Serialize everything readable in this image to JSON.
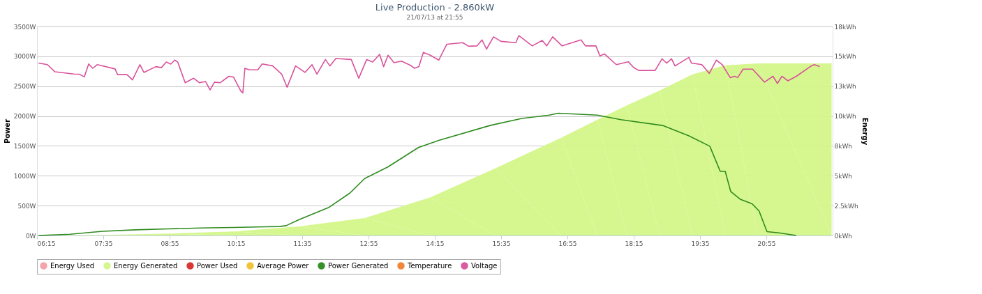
{
  "chart_data": {
    "type": "line",
    "title": "Live Production - 2.860kW",
    "subtitle": "21/07/13 at 21:55",
    "ylabel": "Power",
    "y2label": "Energy",
    "xlim": [
      6.25,
      22.25
    ],
    "xticks": [
      {
        "value": 6.25,
        "label": "06:15"
      },
      {
        "value": 7.5833,
        "label": "07:35"
      },
      {
        "value": 8.9167,
        "label": "08:55"
      },
      {
        "value": 10.25,
        "label": "10:15"
      },
      {
        "value": 11.5833,
        "label": "11:35"
      },
      {
        "value": 12.9167,
        "label": "12:55"
      },
      {
        "value": 14.25,
        "label": "14:15"
      },
      {
        "value": 15.5833,
        "label": "15:35"
      },
      {
        "value": 16.9167,
        "label": "16:55"
      },
      {
        "value": 18.25,
        "label": "18:15"
      },
      {
        "value": 19.5833,
        "label": "19:35"
      },
      {
        "value": 20.9167,
        "label": "20:55"
      }
    ],
    "ylim": [
      0,
      3500
    ],
    "yticks": [
      {
        "value": 0,
        "label": "0W"
      },
      {
        "value": 500,
        "label": "500W"
      },
      {
        "value": 1000,
        "label": "1000W"
      },
      {
        "value": 1500,
        "label": "1500W"
      },
      {
        "value": 2000,
        "label": "2000W"
      },
      {
        "value": 2500,
        "label": "2500W"
      },
      {
        "value": 3000,
        "label": "3000W"
      },
      {
        "value": 3500,
        "label": "3500W"
      }
    ],
    "y2lim": [
      0,
      17.5
    ],
    "y2ticks": [
      {
        "value": 0,
        "label": "0kWh"
      },
      {
        "value": 2.5,
        "label": "2.5kWh"
      },
      {
        "value": 5,
        "label": "5kWh"
      },
      {
        "value": 7.5,
        "label": "8kWh"
      },
      {
        "value": 10,
        "label": "10kWh"
      },
      {
        "value": 12.5,
        "label": "13kWh"
      },
      {
        "value": 15,
        "label": "15kWh"
      },
      {
        "value": 17.5,
        "label": "18kWh"
      }
    ],
    "grid": "y",
    "legend": "bottom",
    "marker": "none",
    "line_style": "solid",
    "series": [
      {
        "name": "Energy Used",
        "type": "area",
        "axis": "y2",
        "color": "#f4a0a8"
      },
      {
        "name": "Energy Generated",
        "type": "area",
        "axis": "y2",
        "color": "#d4f78a",
        "x": [
          6.25,
          7.57,
          8.89,
          10.2,
          11.52,
          12.84,
          14.16,
          15.47,
          16.79,
          17.52,
          18.11,
          18.77,
          19.43,
          20.09,
          20.74,
          22.23
        ],
        "values": [
          0,
          0.05,
          0.16,
          0.33,
          0.76,
          1.46,
          3.2,
          5.63,
          8.18,
          9.7,
          10.89,
          12.14,
          13.49,
          14.25,
          14.41,
          14.41
        ]
      },
      {
        "name": "Power Used",
        "color": "#d62d2d"
      },
      {
        "name": "Average Power",
        "color": "#f0c030"
      },
      {
        "name": "Power Generated",
        "color": "#2e8b1e",
        "x": [
          6.28,
          6.91,
          7.57,
          8.23,
          8.89,
          9.54,
          10.2,
          10.86,
          11.13,
          11.26,
          11.52,
          12.11,
          12.54,
          12.84,
          13.31,
          13.92,
          14.33,
          15.36,
          16.0,
          16.55,
          16.73,
          17.52,
          17.99,
          18.83,
          19.36,
          19.78,
          19.99,
          20.09,
          20.2,
          20.39,
          20.63,
          20.77,
          20.93,
          21.17,
          21.52
        ],
        "values": [
          0,
          20,
          70,
          95,
          110,
          125,
          135,
          145,
          150,
          165,
          265,
          466,
          709,
          954,
          1149,
          1473,
          1593,
          1842,
          1960,
          2015,
          2048,
          2015,
          1940,
          1842,
          1669,
          1495,
          1073,
          1073,
          737,
          607,
          531,
          412,
          65,
          43,
          0
        ]
      },
      {
        "name": "Temperature",
        "color": "#f08030"
      },
      {
        "name": "Voltage",
        "color": "#d9519a",
        "x": [
          6.28,
          6.46,
          6.61,
          6.99,
          7.11,
          7.2,
          7.29,
          7.37,
          7.46,
          7.82,
          7.87,
          8.06,
          8.17,
          8.32,
          8.4,
          8.64,
          8.75,
          8.85,
          8.94,
          9.02,
          9.08,
          9.23,
          9.4,
          9.52,
          9.64,
          9.73,
          9.82,
          9.93,
          10.11,
          10.2,
          10.35,
          10.39,
          10.43,
          10.52,
          10.69,
          10.78,
          10.99,
          11.17,
          11.28,
          11.45,
          11.64,
          11.78,
          11.88,
          12.05,
          12.14,
          12.26,
          12.57,
          12.72,
          12.88,
          13.0,
          13.14,
          13.22,
          13.31,
          13.43,
          13.58,
          13.76,
          13.84,
          13.93,
          14.02,
          14.16,
          14.33,
          14.49,
          14.81,
          14.93,
          15.1,
          15.2,
          15.29,
          15.43,
          15.58,
          15.88,
          15.94,
          16.21,
          16.41,
          16.5,
          16.62,
          16.81,
          17.19,
          17.28,
          17.49,
          17.57,
          17.66,
          17.9,
          18.14,
          18.25,
          18.35,
          18.68,
          18.82,
          18.91,
          19.01,
          19.08,
          19.36,
          19.41,
          19.62,
          19.77,
          19.91,
          20.03,
          20.19,
          20.28,
          20.34,
          20.45,
          20.64,
          20.88,
          21.05,
          21.14,
          21.23,
          21.35,
          21.52,
          21.82,
          21.88,
          21.99
        ],
        "values": [
          2887,
          2861,
          2741,
          2703,
          2700,
          2655,
          2872,
          2800,
          2861,
          2790,
          2693,
          2693,
          2606,
          2861,
          2731,
          2828,
          2810,
          2904,
          2870,
          2937,
          2904,
          2557,
          2633,
          2557,
          2579,
          2438,
          2568,
          2557,
          2666,
          2655,
          2416,
          2388,
          2800,
          2774,
          2774,
          2872,
          2839,
          2703,
          2482,
          2839,
          2731,
          2861,
          2703,
          2947,
          2839,
          2964,
          2947,
          2633,
          2947,
          2904,
          3034,
          2828,
          3018,
          2893,
          2920,
          2850,
          2800,
          2828,
          3067,
          3018,
          2937,
          3202,
          3229,
          3169,
          3175,
          3275,
          3121,
          3327,
          3251,
          3229,
          3348,
          3175,
          3266,
          3175,
          3327,
          3175,
          3275,
          3175,
          3175,
          3007,
          3040,
          2861,
          2909,
          2812,
          2763,
          2763,
          2958,
          2887,
          2958,
          2839,
          2983,
          2887,
          2861,
          2714,
          2937,
          2861,
          2644,
          2666,
          2644,
          2785,
          2785,
          2568,
          2666,
          2546,
          2666,
          2590,
          2666,
          2839,
          2861,
          2828
        ]
      }
    ]
  }
}
